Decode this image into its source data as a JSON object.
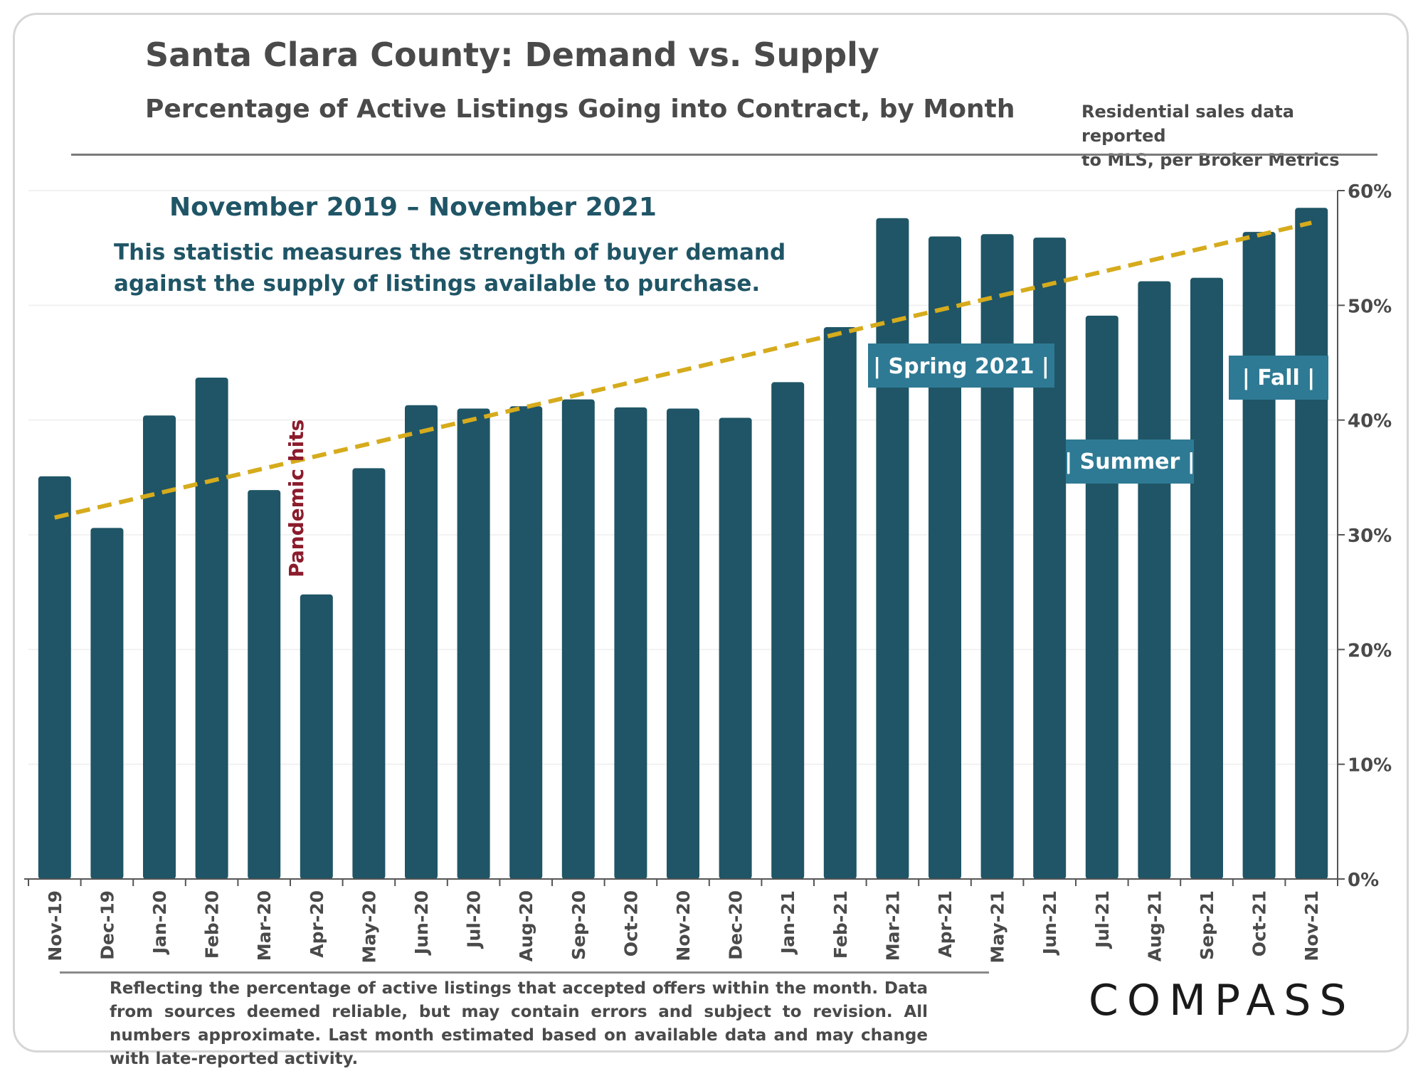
{
  "header": {
    "title": "Santa Clara County: Demand vs. Supply",
    "subtitle": "Percentage of Active Listings Going into Contract, by Month",
    "source_line1": "Residential sales data reported",
    "source_line2": "to MLS, per Broker Metrics"
  },
  "footer": {
    "note": "Reflecting the percentage of active listings that accepted offers within the month. Data from sources deemed reliable, but may contain errors and subject to revision. All numbers approximate. Last month estimated based on available data and may change with late-reported activity.",
    "logo": "COMPASS"
  },
  "colors": {
    "bar": "#1f5566",
    "trend": "#d6ab1c",
    "annotation_text": "#1f5566",
    "pandemic": "#8b1c2c",
    "label_box": "#2e7a94",
    "axis": "#4a4a4a"
  },
  "chart_data": {
    "type": "bar",
    "categories": [
      "Nov-19",
      "Dec-19",
      "Jan-20",
      "Feb-20",
      "Mar-20",
      "Apr-20",
      "May-20",
      "Jun-20",
      "Jul-20",
      "Aug-20",
      "Sep-20",
      "Oct-20",
      "Nov-20",
      "Dec-20",
      "Jan-21",
      "Feb-21",
      "Mar-21",
      "Apr-21",
      "May-21",
      "Jun-21",
      "Jul-21",
      "Aug-21",
      "Sep-21",
      "Oct-21",
      "Nov-21"
    ],
    "values": [
      35.1,
      30.6,
      40.4,
      43.7,
      33.9,
      24.8,
      35.8,
      41.3,
      41.0,
      41.2,
      41.8,
      41.1,
      41.0,
      40.2,
      43.3,
      48.1,
      57.6,
      56.0,
      56.2,
      55.9,
      49.1,
      52.1,
      52.4,
      56.4,
      58.5
    ],
    "ylim": [
      0,
      60
    ],
    "yticks": [
      0,
      10,
      20,
      30,
      40,
      50,
      60
    ],
    "ytick_labels": [
      "0%",
      "10%",
      "20%",
      "30%",
      "40%",
      "50%",
      "60%"
    ],
    "y_axis_side": "right",
    "trendline": {
      "type": "linear",
      "style": "dashed",
      "start": 31.5,
      "end": 57.2
    },
    "annotations": {
      "period": "November 2019 – November 2021",
      "desc_line1": "This statistic measures the strength of buyer demand",
      "desc_line2": "against the supply of listings available to purchase.",
      "pandemic": "Pandemic hits",
      "spring": "| Spring 2021 |",
      "summer": "| Summer |",
      "fall": "| Fall |"
    }
  }
}
